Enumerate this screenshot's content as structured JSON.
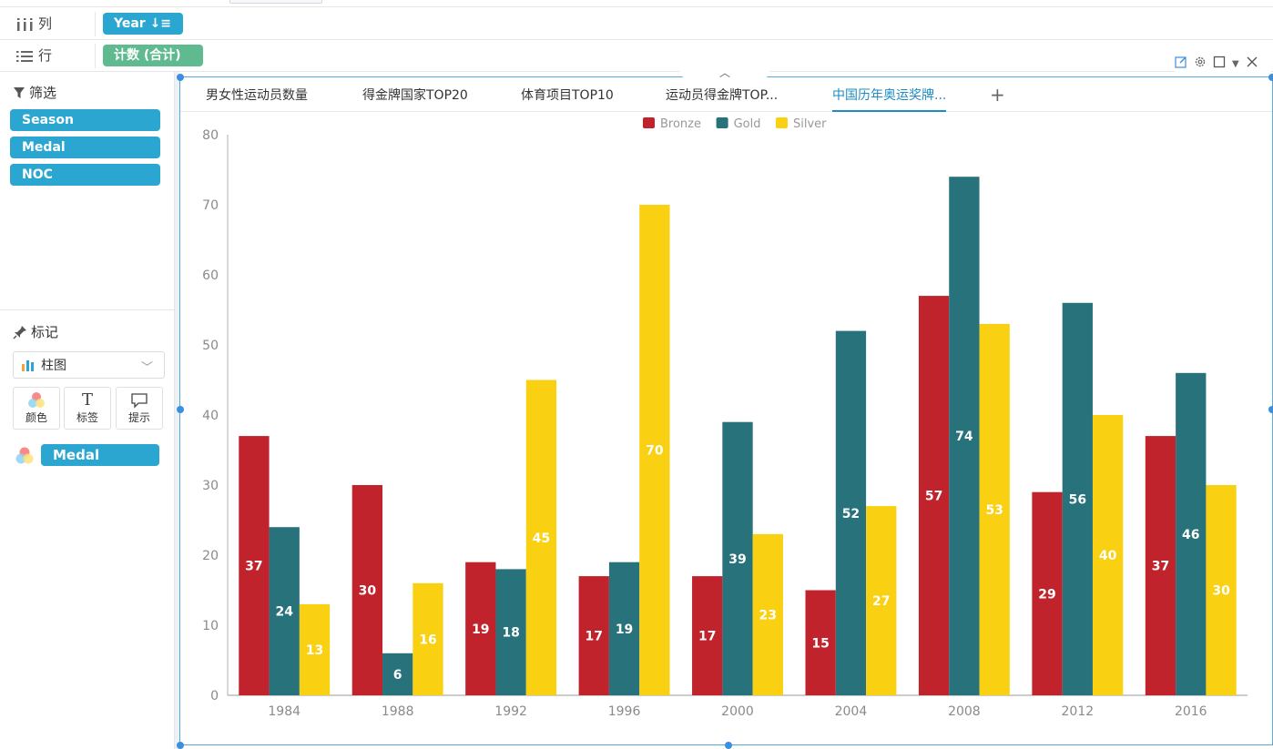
{
  "shelves": {
    "columns": {
      "label": "列",
      "pill": "Year ↓≡"
    },
    "rows": {
      "label": "行",
      "pill": "计数 (合计)"
    }
  },
  "sidebar": {
    "filter_title": "筛选",
    "filters": [
      "Season",
      "Medal",
      "NOC"
    ],
    "marks_title": "标记",
    "chart_type": "柱图",
    "mark_buttons": [
      {
        "label": "颜色",
        "icon": "color-icon"
      },
      {
        "label": "标签",
        "icon": "text-icon"
      },
      {
        "label": "提示",
        "icon": "tooltip-icon"
      }
    ],
    "color_field": "Medal"
  },
  "tabs": [
    {
      "label": "男女性运动员数量"
    },
    {
      "label": "得金牌国家TOP20"
    },
    {
      "label": "体育项目TOP10"
    },
    {
      "label": "运动员得金牌TOP..."
    },
    {
      "label": "中国历年奥运奖牌...",
      "active": true
    }
  ],
  "colors": {
    "Bronze": "#c0232c",
    "Gold": "#27727b",
    "Silver": "#fad013",
    "accent": "#2aa6d0"
  },
  "chart_data": {
    "type": "bar",
    "categories": [
      "1984",
      "1988",
      "1992",
      "1996",
      "2000",
      "2004",
      "2008",
      "2012",
      "2016"
    ],
    "series": [
      {
        "name": "Bronze",
        "values": [
          37,
          30,
          19,
          17,
          17,
          15,
          57,
          29,
          37
        ]
      },
      {
        "name": "Gold",
        "values": [
          24,
          6,
          18,
          19,
          39,
          52,
          74,
          56,
          46
        ]
      },
      {
        "name": "Silver",
        "values": [
          13,
          16,
          45,
          70,
          23,
          27,
          53,
          40,
          30
        ]
      }
    ],
    "yticks": [
      0,
      10,
      20,
      30,
      40,
      50,
      60,
      70,
      80
    ],
    "ylim": [
      0,
      80
    ],
    "legend": "top-center",
    "title": "",
    "xlabel": "",
    "ylabel": ""
  }
}
